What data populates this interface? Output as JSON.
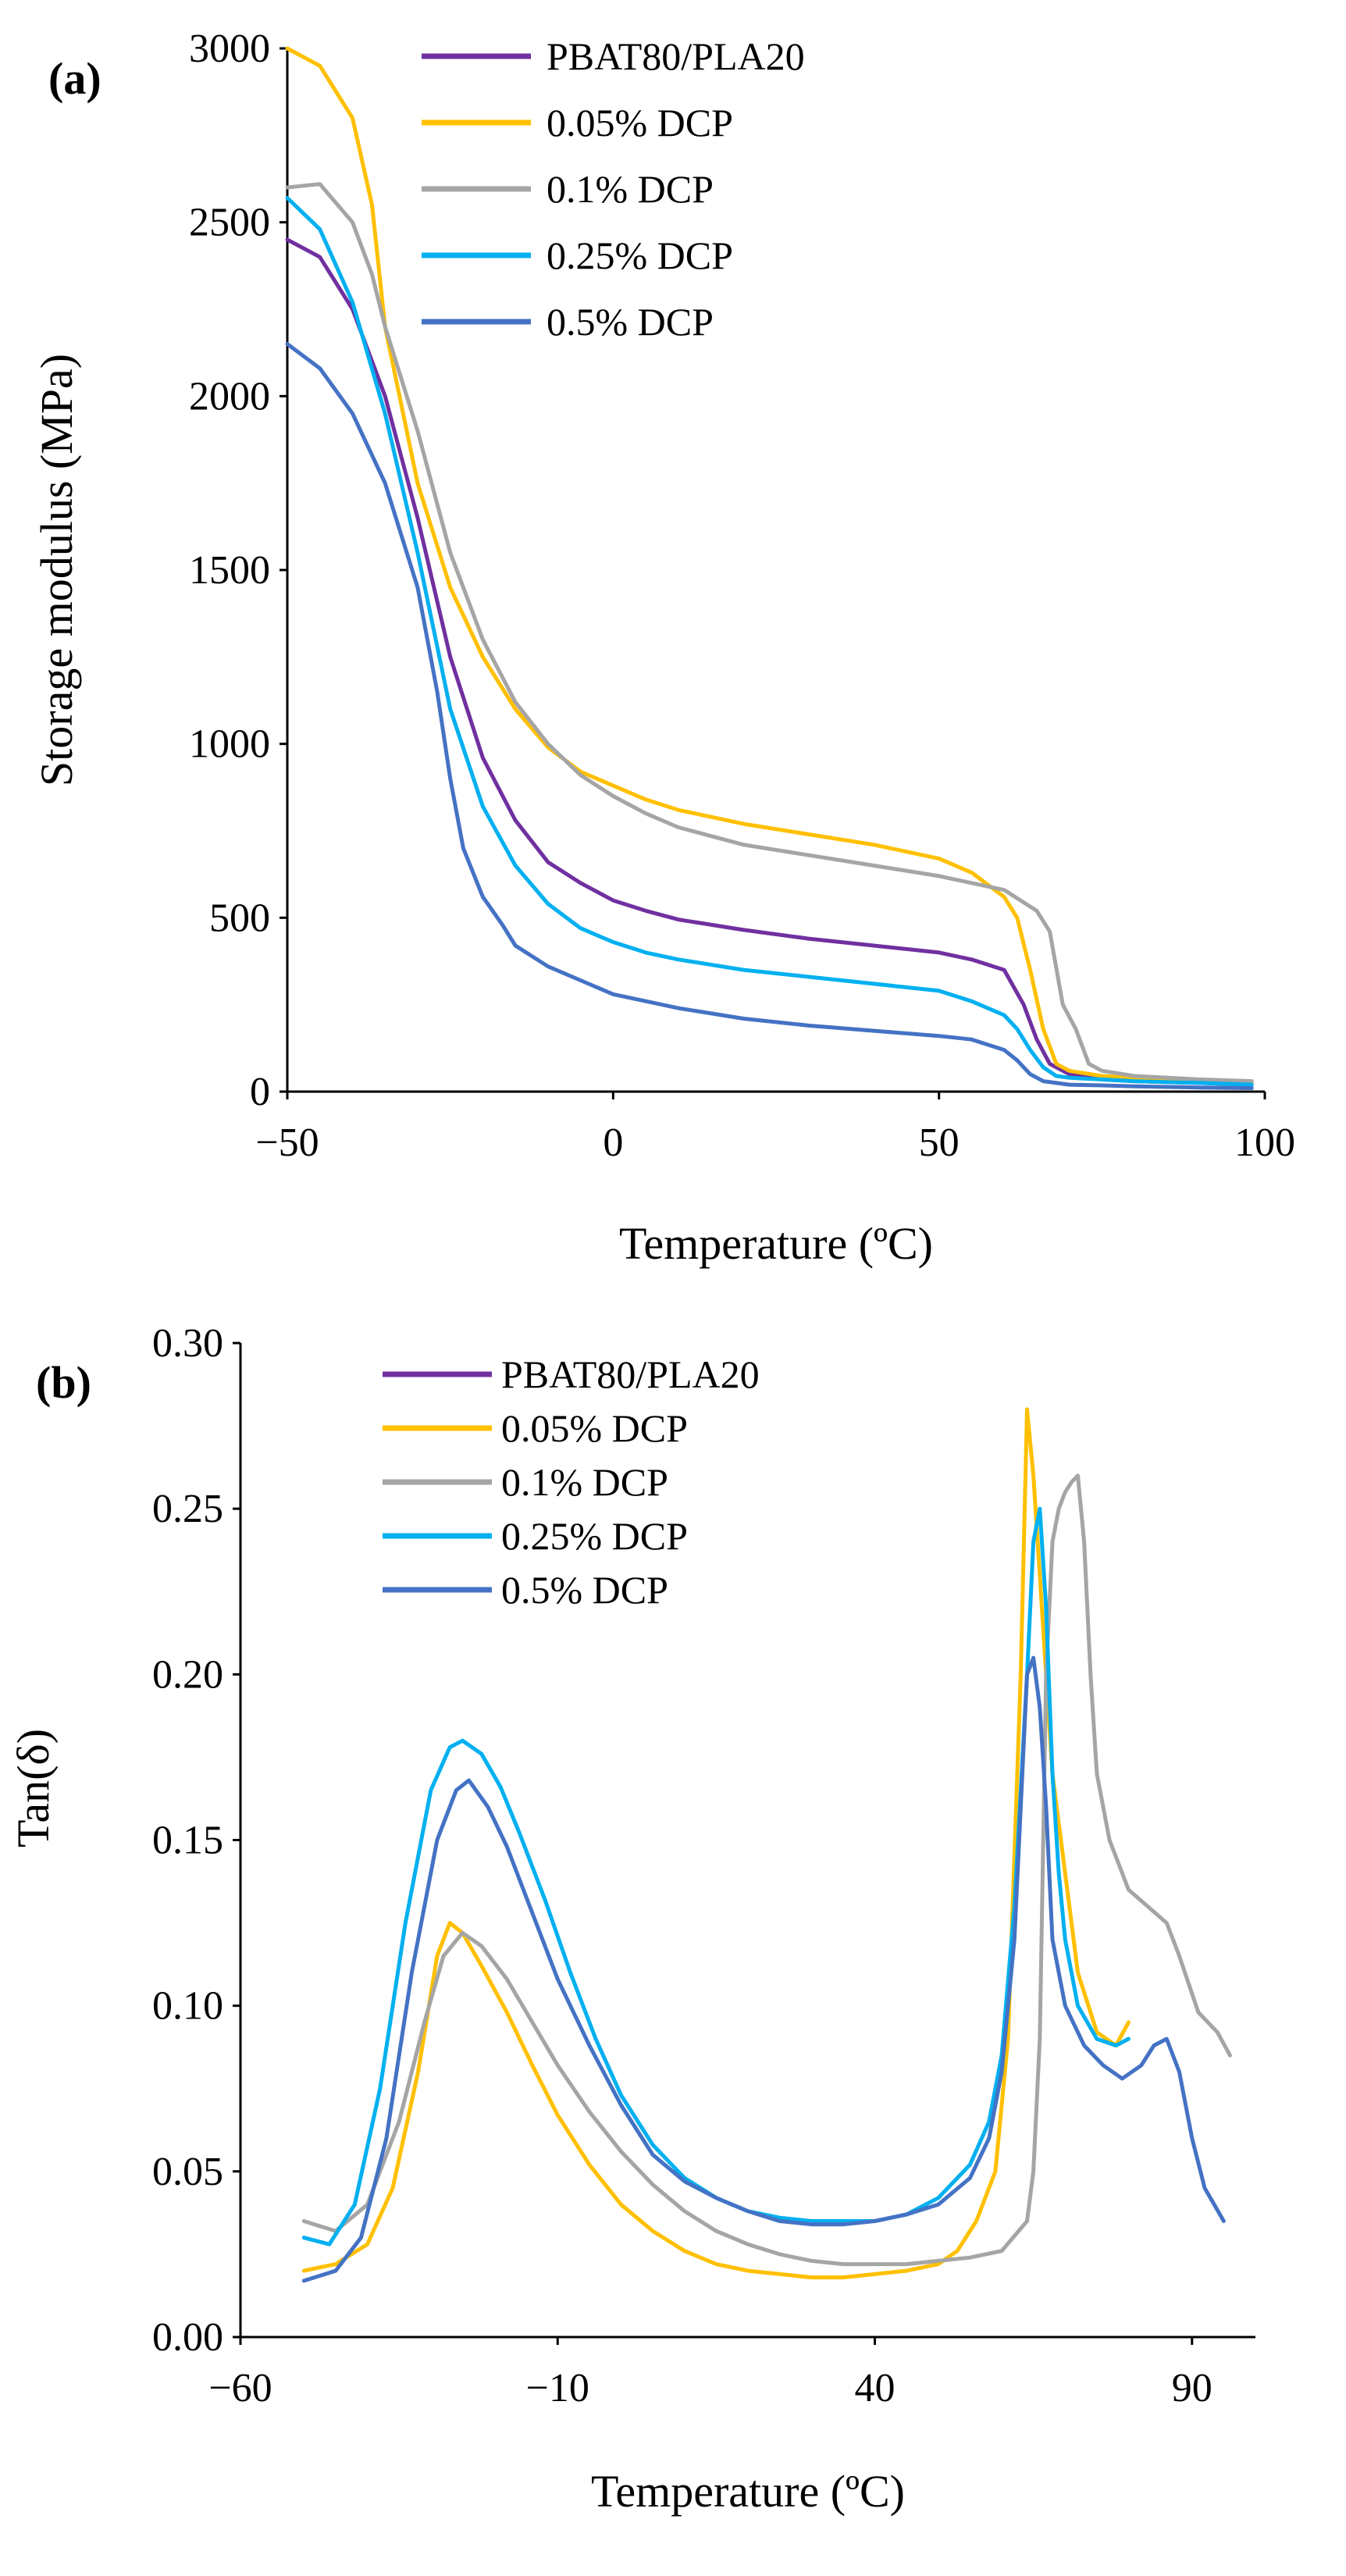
{
  "colors": {
    "PBAT80/PLA20": "#7030a0",
    "0.05% DCP": "#ffc000",
    "0.1% DCP": "#a5a5a5",
    "0.25% DCP": "#00b0f0",
    "0.5% DCP": "#4472c4"
  },
  "chart_data": [
    {
      "type": "line",
      "panel_label": "(a)",
      "title": "",
      "xlabel": "Temperature (ºC)",
      "ylabel": "Storage modulus (MPa)",
      "xlim": [
        -50,
        100
      ],
      "ylim": [
        0,
        3000
      ],
      "xticks": [
        -50,
        0,
        50,
        100
      ],
      "xtick_labels": [
        "−50",
        "0",
        "50",
        "100"
      ],
      "yticks": [
        0,
        500,
        1000,
        1500,
        2000,
        2500,
        3000
      ],
      "ytick_labels": [
        "0",
        "500",
        "1000",
        "1500",
        "2000",
        "2500",
        "3000"
      ],
      "grid": false,
      "legend_position": "top-center",
      "series": [
        {
          "name": "PBAT80/PLA20",
          "x": [
            -50,
            -45,
            -40,
            -35,
            -30,
            -25,
            -20,
            -15,
            -10,
            -5,
            0,
            5,
            10,
            20,
            30,
            40,
            50,
            55,
            60,
            63,
            65,
            67,
            70,
            75,
            80,
            90,
            98
          ],
          "y": [
            2450,
            2400,
            2250,
            2000,
            1650,
            1250,
            960,
            780,
            660,
            600,
            550,
            520,
            495,
            465,
            440,
            420,
            400,
            380,
            350,
            250,
            150,
            80,
            50,
            35,
            30,
            25,
            20
          ]
        },
        {
          "name": "0.05% DCP",
          "x": [
            -50,
            -45,
            -40,
            -37,
            -35,
            -30,
            -25,
            -20,
            -15,
            -10,
            -5,
            0,
            5,
            10,
            20,
            30,
            40,
            50,
            55,
            60,
            62,
            64,
            66,
            68,
            70,
            75,
            80,
            90,
            98
          ],
          "y": [
            3000,
            2950,
            2800,
            2550,
            2200,
            1750,
            1450,
            1250,
            1100,
            990,
            920,
            880,
            840,
            810,
            770,
            740,
            710,
            670,
            630,
            560,
            500,
            350,
            180,
            80,
            60,
            45,
            40,
            30,
            25
          ]
        },
        {
          "name": "0.1% DCP",
          "x": [
            -50,
            -45,
            -40,
            -37,
            -35,
            -30,
            -25,
            -20,
            -15,
            -10,
            -5,
            0,
            5,
            10,
            20,
            30,
            40,
            50,
            55,
            60,
            65,
            67,
            69,
            71,
            73,
            75,
            80,
            90,
            98
          ],
          "y": [
            2600,
            2610,
            2500,
            2350,
            2200,
            1900,
            1550,
            1300,
            1120,
            1000,
            910,
            850,
            800,
            760,
            710,
            680,
            650,
            620,
            600,
            580,
            520,
            460,
            250,
            180,
            80,
            60,
            45,
            35,
            30
          ]
        },
        {
          "name": "0.25% DCP",
          "x": [
            -50,
            -45,
            -40,
            -35,
            -30,
            -25,
            -20,
            -15,
            -10,
            -5,
            0,
            5,
            10,
            20,
            30,
            40,
            50,
            55,
            60,
            62,
            64,
            66,
            68,
            70,
            75,
            80,
            90,
            98
          ],
          "y": [
            2570,
            2480,
            2270,
            1950,
            1550,
            1100,
            820,
            650,
            540,
            470,
            430,
            400,
            380,
            350,
            330,
            310,
            290,
            260,
            220,
            180,
            120,
            70,
            45,
            40,
            35,
            30,
            25,
            20
          ]
        },
        {
          "name": "0.5% DCP",
          "x": [
            -50,
            -45,
            -40,
            -35,
            -30,
            -27,
            -25,
            -23,
            -20,
            -17,
            -15,
            -10,
            -5,
            0,
            5,
            10,
            20,
            30,
            40,
            50,
            55,
            60,
            62,
            64,
            66,
            68,
            70,
            75,
            80,
            90,
            98
          ],
          "y": [
            2150,
            2080,
            1950,
            1750,
            1450,
            1150,
            900,
            700,
            560,
            480,
            420,
            360,
            320,
            280,
            260,
            240,
            210,
            190,
            175,
            160,
            150,
            120,
            90,
            50,
            30,
            25,
            20,
            18,
            15,
            12,
            10
          ]
        }
      ]
    },
    {
      "type": "line",
      "panel_label": "(b)",
      "title": "",
      "xlabel": "Temperature (ºC)",
      "ylabel": "Tan(δ)",
      "xlim": [
        -60,
        100
      ],
      "ylim": [
        0.0,
        0.3
      ],
      "xticks": [
        -60,
        -10,
        40,
        90
      ],
      "xtick_labels": [
        "−60",
        "−10",
        "40",
        "90"
      ],
      "yticks": [
        0.0,
        0.05,
        0.1,
        0.15,
        0.2,
        0.25,
        0.3
      ],
      "ytick_labels": [
        "0.00",
        "0.05",
        "0.10",
        "0.15",
        "0.20",
        "0.25",
        "0.30"
      ],
      "grid": false,
      "legend_position": "top-center",
      "series": [
        {
          "name": "PBAT80/PLA20",
          "x": [],
          "y": []
        },
        {
          "name": "0.05% DCP",
          "x": [
            -50,
            -45,
            -40,
            -36,
            -32,
            -29,
            -27,
            -25,
            -22,
            -18,
            -14,
            -10,
            -5,
            0,
            5,
            10,
            15,
            20,
            25,
            30,
            35,
            40,
            45,
            50,
            53,
            56,
            59,
            61,
            63,
            64,
            65,
            66,
            67,
            68,
            70,
            72,
            75,
            78,
            80
          ],
          "y": [
            0.02,
            0.022,
            0.028,
            0.045,
            0.08,
            0.115,
            0.125,
            0.122,
            0.112,
            0.098,
            0.082,
            0.067,
            0.052,
            0.04,
            0.032,
            0.026,
            0.022,
            0.02,
            0.019,
            0.018,
            0.018,
            0.019,
            0.02,
            0.022,
            0.026,
            0.035,
            0.05,
            0.09,
            0.2,
            0.28,
            0.26,
            0.23,
            0.2,
            0.17,
            0.14,
            0.11,
            0.092,
            0.088,
            0.095
          ]
        },
        {
          "name": "0.1% DCP",
          "x": [
            -50,
            -45,
            -40,
            -35,
            -31,
            -28,
            -25,
            -22,
            -18,
            -14,
            -10,
            -5,
            0,
            5,
            10,
            15,
            20,
            25,
            30,
            35,
            40,
            45,
            50,
            55,
            60,
            64,
            65,
            66,
            67,
            68,
            69,
            70,
            71,
            72,
            73,
            74,
            75,
            77,
            80,
            83,
            86,
            88,
            91,
            94,
            96
          ],
          "y": [
            0.035,
            0.032,
            0.04,
            0.065,
            0.095,
            0.115,
            0.122,
            0.118,
            0.108,
            0.095,
            0.082,
            0.068,
            0.056,
            0.046,
            0.038,
            0.032,
            0.028,
            0.025,
            0.023,
            0.022,
            0.022,
            0.022,
            0.023,
            0.024,
            0.026,
            0.035,
            0.05,
            0.09,
            0.2,
            0.24,
            0.25,
            0.255,
            0.258,
            0.26,
            0.24,
            0.2,
            0.17,
            0.15,
            0.135,
            0.13,
            0.125,
            0.115,
            0.098,
            0.092,
            0.085
          ]
        },
        {
          "name": "0.25% DCP",
          "x": [
            -50,
            -46,
            -42,
            -38,
            -34,
            -30,
            -27,
            -25,
            -22,
            -19,
            -16,
            -12,
            -8,
            -4,
            0,
            5,
            10,
            15,
            20,
            25,
            30,
            35,
            40,
            45,
            50,
            55,
            58,
            60,
            62,
            64,
            65,
            66,
            67,
            68,
            69,
            70,
            72,
            75,
            78,
            80
          ],
          "y": [
            0.03,
            0.028,
            0.04,
            0.075,
            0.125,
            0.165,
            0.178,
            0.18,
            0.176,
            0.166,
            0.152,
            0.132,
            0.11,
            0.09,
            0.073,
            0.058,
            0.048,
            0.042,
            0.038,
            0.036,
            0.035,
            0.035,
            0.035,
            0.037,
            0.042,
            0.052,
            0.065,
            0.085,
            0.13,
            0.2,
            0.24,
            0.25,
            0.22,
            0.17,
            0.14,
            0.12,
            0.1,
            0.09,
            0.088,
            0.09
          ]
        },
        {
          "name": "0.5% DCP",
          "x": [
            -50,
            -45,
            -41,
            -37,
            -33,
            -29,
            -26,
            -24,
            -21,
            -18,
            -14,
            -10,
            -5,
            0,
            5,
            10,
            15,
            20,
            25,
            30,
            35,
            40,
            45,
            50,
            55,
            58,
            60,
            62,
            63,
            64,
            65,
            66,
            67,
            68,
            70,
            73,
            76,
            79,
            82,
            84,
            86,
            88,
            90,
            92,
            95
          ],
          "y": [
            0.017,
            0.02,
            0.03,
            0.06,
            0.11,
            0.15,
            0.165,
            0.168,
            0.16,
            0.148,
            0.128,
            0.108,
            0.088,
            0.07,
            0.055,
            0.047,
            0.042,
            0.038,
            0.035,
            0.034,
            0.034,
            0.035,
            0.037,
            0.04,
            0.048,
            0.06,
            0.08,
            0.12,
            0.16,
            0.2,
            0.205,
            0.19,
            0.16,
            0.12,
            0.1,
            0.088,
            0.082,
            0.078,
            0.082,
            0.088,
            0.09,
            0.08,
            0.06,
            0.045,
            0.035
          ]
        }
      ]
    }
  ]
}
